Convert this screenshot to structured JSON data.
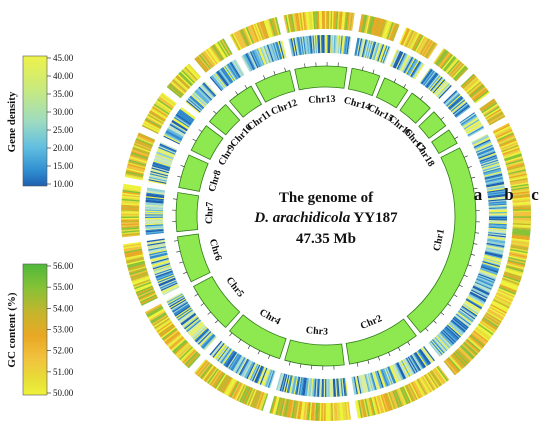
{
  "legends": {
    "gene_density": {
      "title": "Gene density",
      "ticks": [
        "45.00",
        "40.00",
        "35.00",
        "30.00",
        "25.00",
        "20.00",
        "15.00",
        "10.00"
      ],
      "colors": [
        "#eef24a",
        "#c9ea7c",
        "#9fdcc0",
        "#62bfe0",
        "#2f8fd0",
        "#1f5fb0"
      ]
    },
    "gc_content": {
      "title": "GC content (%)",
      "ticks": [
        "56.00",
        "55.00",
        "54.00",
        "53.00",
        "52.00",
        "51.00",
        "50.00"
      ],
      "colors": [
        "#4fb83a",
        "#86c236",
        "#c7b52c",
        "#e9a824",
        "#f1b63a",
        "#e8dd38",
        "#eef23a"
      ]
    }
  },
  "center": {
    "line1": "The genome of",
    "line2_italic": "D. arachidicola",
    "line2_rest": " YY187",
    "line3": "47.35 Mb"
  },
  "track_labels": [
    "a",
    "b",
    "c"
  ],
  "chromosomes": [
    "Chr1",
    "Chr2",
    "Chr3",
    "Chr4",
    "Chr5",
    "Chr6",
    "Chr7",
    "Chr8",
    "Chr9",
    "Chr10",
    "Chr11",
    "Chr12",
    "Chr13",
    "Chr14",
    "Chr15",
    "Chr16",
    "Chr17",
    "Chr18"
  ],
  "colors": {
    "chromosome_fill": "#8ee84f",
    "chromosome_stroke": "#2f7a1a",
    "gene_density_palette": [
      "#1e5fae",
      "#2f88cc",
      "#5fb4dc",
      "#93d2d8",
      "#bfe3c9",
      "#d9ee9a",
      "#eef24a"
    ],
    "gc_palette": [
      "#eef23a",
      "#e6df3a",
      "#f1c23e",
      "#e9a824",
      "#c7b52c",
      "#86c236"
    ]
  }
}
